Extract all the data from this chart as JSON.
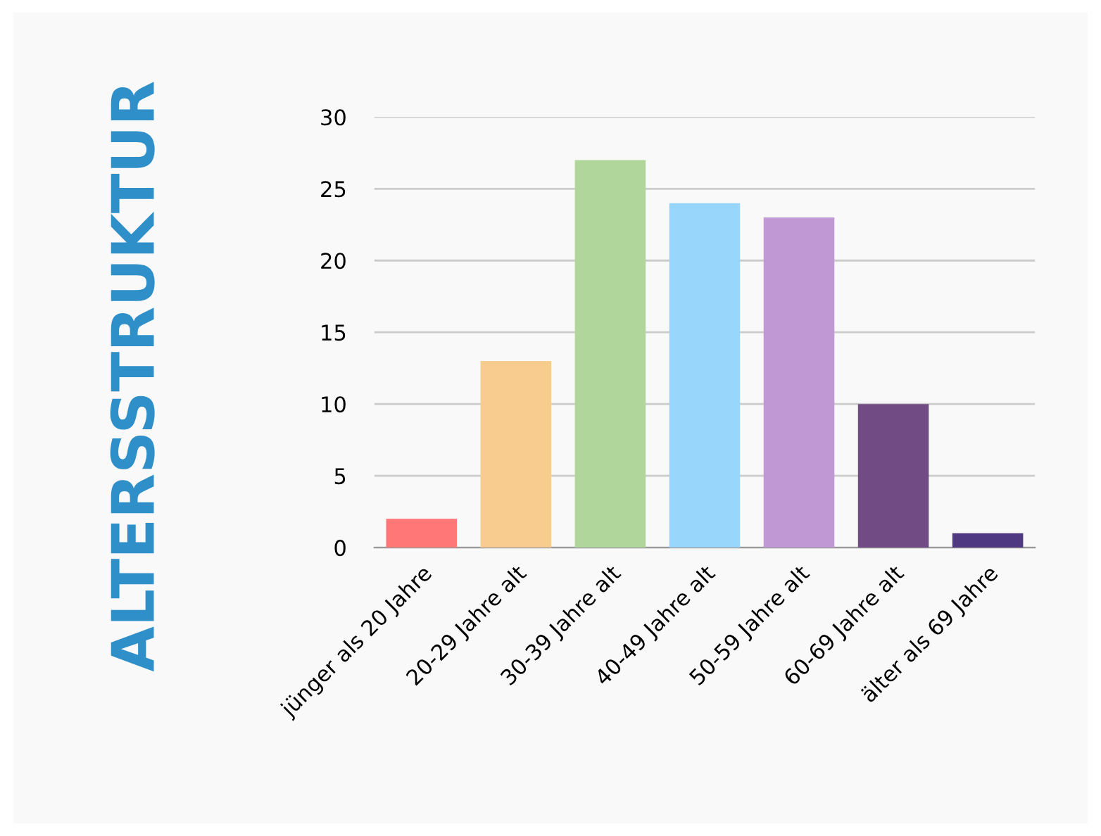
{
  "chart_data": {
    "type": "bar",
    "title": "ALTERSSTRUKTUR",
    "categories": [
      "jünger als 20 Jahre",
      "20-29 Jahre alt",
      "30-39 Jahre alt",
      "40-49 Jahre alt",
      "50-59 Jahre alt",
      "60-69 Jahre alt",
      "älter als 69 Jahre"
    ],
    "values": [
      2,
      13,
      27,
      24,
      23,
      10,
      1
    ],
    "colors": [
      "#ff7777",
      "#f8cb8e",
      "#b0d69c",
      "#98d6fc",
      "#c098d3",
      "#704b84",
      "#4f3a82"
    ],
    "ylim": [
      0,
      30
    ],
    "yticks": [
      0,
      5,
      10,
      15,
      20,
      25,
      30
    ],
    "grid": "y"
  }
}
